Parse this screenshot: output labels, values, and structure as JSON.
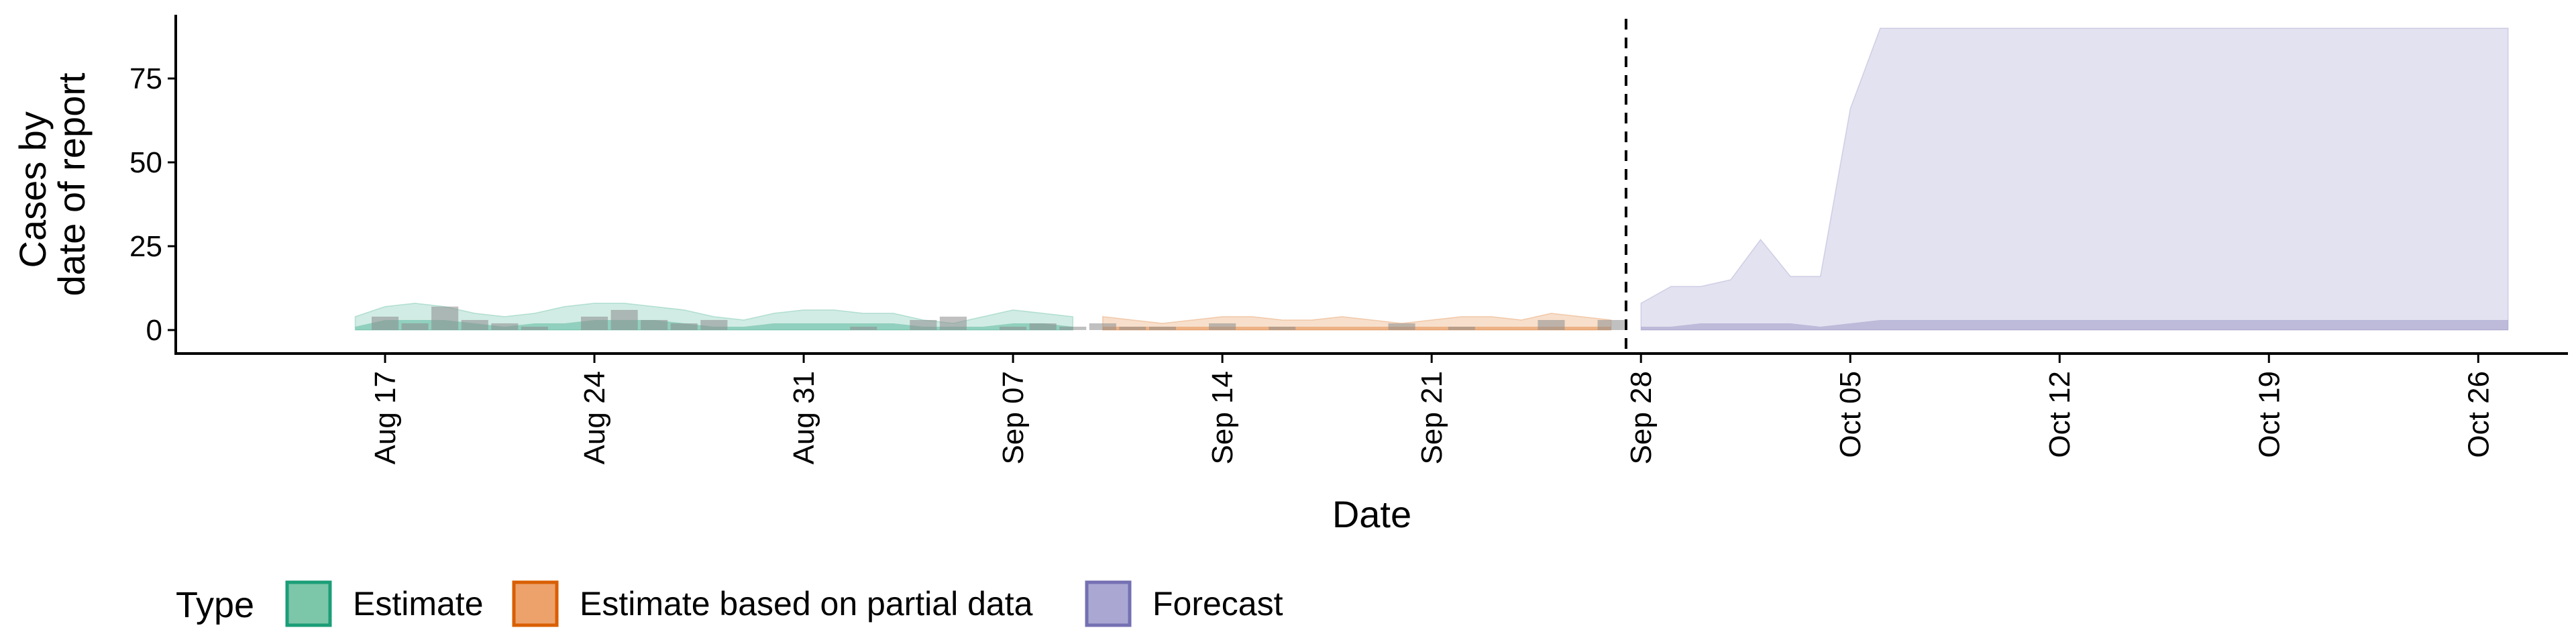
{
  "chart_data": {
    "type": "area",
    "xlabel": "Date",
    "ylabel_lines": [
      "Cases by",
      "date of report"
    ],
    "x_range": [
      "2020-08-10",
      "2020-10-29"
    ],
    "ylim": [
      -7,
      94
    ],
    "y_ticks": [
      0,
      25,
      50,
      75
    ],
    "x_ticks": [
      {
        "date": "2020-08-17",
        "label": "Aug 17"
      },
      {
        "date": "2020-08-24",
        "label": "Aug 24"
      },
      {
        "date": "2020-08-31",
        "label": "Aug 31"
      },
      {
        "date": "2020-09-07",
        "label": "Sep 07"
      },
      {
        "date": "2020-09-14",
        "label": "Sep 14"
      },
      {
        "date": "2020-09-21",
        "label": "Sep 21"
      },
      {
        "date": "2020-09-28",
        "label": "Sep 28"
      },
      {
        "date": "2020-10-05",
        "label": "Oct 05"
      },
      {
        "date": "2020-10-12",
        "label": "Oct 12"
      },
      {
        "date": "2020-10-19",
        "label": "Oct 19"
      },
      {
        "date": "2020-10-26",
        "label": "Oct 26"
      }
    ],
    "forecast_date": "2020-09-27",
    "grid": false,
    "legend": {
      "title": "Type",
      "position": "bottom",
      "entries": [
        {
          "label": "Estimate",
          "fill": "#7cc6aa",
          "stroke": "#1b9e77"
        },
        {
          "label": "Estimate based on partial data",
          "fill": "#eda26c",
          "stroke": "#d95f02"
        },
        {
          "label": "Forecast",
          "fill": "#aaa8d2",
          "stroke": "#7570b3"
        }
      ]
    },
    "series": [
      {
        "name": "Estimate",
        "fill": "#1b9e77",
        "dates": [
          "2020-08-16",
          "2020-08-17",
          "2020-08-18",
          "2020-08-19",
          "2020-08-20",
          "2020-08-21",
          "2020-08-22",
          "2020-08-23",
          "2020-08-24",
          "2020-08-25",
          "2020-08-26",
          "2020-08-27",
          "2020-08-28",
          "2020-08-29",
          "2020-08-30",
          "2020-08-31",
          "2020-09-01",
          "2020-09-02",
          "2020-09-03",
          "2020-09-04",
          "2020-09-05",
          "2020-09-06",
          "2020-09-07",
          "2020-09-08",
          "2020-09-09"
        ],
        "lower90": [
          0,
          0,
          0,
          0,
          0,
          0,
          0,
          0,
          0,
          0,
          0,
          0,
          0,
          0,
          0,
          0,
          0,
          0,
          0,
          0,
          0,
          0,
          0,
          0,
          0
        ],
        "upper90": [
          4,
          7,
          8,
          7,
          5,
          4,
          5,
          7,
          8,
          8,
          7,
          6,
          4,
          3,
          5,
          6,
          6,
          5,
          5,
          3,
          2,
          4,
          6,
          5,
          4
        ],
        "lower50": [
          0,
          0,
          0,
          0,
          0,
          0,
          0,
          0,
          0,
          0,
          0,
          0,
          0,
          0,
          0,
          0,
          0,
          0,
          0,
          0,
          0,
          0,
          0,
          0,
          0
        ],
        "upper50": [
          1,
          3,
          3,
          3,
          2,
          1,
          2,
          2,
          3,
          3,
          3,
          2,
          1,
          1,
          2,
          2,
          2,
          2,
          2,
          1,
          1,
          1,
          2,
          2,
          1
        ]
      },
      {
        "name": "Estimate based on partial data",
        "fill": "#d95f02",
        "dates": [
          "2020-09-10",
          "2020-09-11",
          "2020-09-12",
          "2020-09-13",
          "2020-09-14",
          "2020-09-15",
          "2020-09-16",
          "2020-09-17",
          "2020-09-18",
          "2020-09-19",
          "2020-09-20",
          "2020-09-21",
          "2020-09-22",
          "2020-09-23",
          "2020-09-24",
          "2020-09-25",
          "2020-09-26",
          "2020-09-27"
        ],
        "lower90": [
          0,
          0,
          0,
          0,
          0,
          0,
          0,
          0,
          0,
          0,
          0,
          0,
          0,
          0,
          0,
          0,
          0,
          0
        ],
        "upper90": [
          4,
          3,
          2,
          3,
          4,
          4,
          3,
          3,
          4,
          3,
          2,
          3,
          4,
          4,
          3,
          5,
          4,
          3
        ],
        "lower50": [
          0,
          0,
          0,
          0,
          0,
          0,
          0,
          0,
          0,
          0,
          0,
          0,
          0,
          0,
          0,
          0,
          0,
          0
        ],
        "upper50": [
          1,
          1,
          1,
          1,
          1,
          1,
          1,
          1,
          1,
          1,
          1,
          1,
          1,
          1,
          1,
          1,
          1,
          1
        ]
      },
      {
        "name": "Forecast",
        "fill": "#7570b3",
        "dates": [
          "2020-09-28",
          "2020-09-29",
          "2020-09-30",
          "2020-10-01",
          "2020-10-02",
          "2020-10-03",
          "2020-10-04",
          "2020-10-05",
          "2020-10-06",
          "2020-10-07",
          "2020-10-14",
          "2020-10-21",
          "2020-10-27"
        ],
        "lower90": [
          0,
          0,
          0,
          0,
          0,
          0,
          0,
          0,
          0,
          0,
          0,
          0,
          0
        ],
        "upper90": [
          8,
          13,
          13,
          15,
          27,
          16,
          16,
          66,
          90,
          90,
          90,
          90,
          90
        ],
        "lower50": [
          0,
          0,
          0,
          0,
          0,
          0,
          0,
          0,
          0,
          0,
          0,
          0,
          0
        ],
        "upper50": [
          1,
          1,
          2,
          2,
          2,
          2,
          1,
          2,
          3,
          3,
          3,
          3,
          3
        ]
      }
    ],
    "reported_cases": {
      "dates": [
        "2020-08-17",
        "2020-08-18",
        "2020-08-19",
        "2020-08-20",
        "2020-08-21",
        "2020-08-22",
        "2020-08-24",
        "2020-08-25",
        "2020-08-26",
        "2020-08-27",
        "2020-08-28",
        "2020-09-02",
        "2020-09-04",
        "2020-09-05",
        "2020-09-07",
        "2020-09-08",
        "2020-09-09",
        "2020-09-10",
        "2020-09-11",
        "2020-09-12",
        "2020-09-14",
        "2020-09-16",
        "2020-09-20",
        "2020-09-22",
        "2020-09-25",
        "2020-09-27"
      ],
      "values": [
        4,
        2,
        7,
        3,
        2,
        1,
        4,
        6,
        3,
        2,
        3,
        1,
        3,
        4,
        1,
        2,
        1,
        2,
        1,
        1,
        2,
        1,
        2,
        1,
        3,
        3
      ]
    }
  }
}
